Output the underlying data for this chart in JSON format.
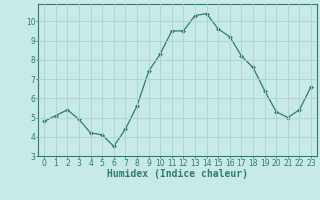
{
  "x": [
    0,
    1,
    2,
    3,
    4,
    5,
    6,
    7,
    8,
    9,
    10,
    11,
    12,
    13,
    14,
    15,
    16,
    17,
    18,
    19,
    20,
    21,
    22,
    23
  ],
  "y": [
    4.8,
    5.1,
    5.4,
    4.9,
    4.2,
    4.1,
    3.5,
    4.4,
    5.6,
    7.4,
    8.3,
    9.5,
    9.5,
    10.3,
    10.4,
    9.6,
    9.2,
    8.2,
    7.6,
    6.4,
    5.3,
    5.0,
    5.4,
    6.6
  ],
  "line_color": "#2d7d6d",
  "marker": "D",
  "marker_size": 2.0,
  "linewidth": 0.9,
  "bg_color": "#c8eae6",
  "grid_color": "#aed4d0",
  "xlabel": "Humidex (Indice chaleur)",
  "xlim": [
    -0.5,
    23.5
  ],
  "ylim": [
    3,
    10.9
  ],
  "yticks": [
    3,
    4,
    5,
    6,
    7,
    8,
    9,
    10
  ],
  "xticks": [
    0,
    1,
    2,
    3,
    4,
    5,
    6,
    7,
    8,
    9,
    10,
    11,
    12,
    13,
    14,
    15,
    16,
    17,
    18,
    19,
    20,
    21,
    22,
    23
  ],
  "tick_color": "#2d7d6d",
  "label_fontsize": 7.0,
  "tick_fontsize": 5.5,
  "spine_color": "#2d7d6d"
}
